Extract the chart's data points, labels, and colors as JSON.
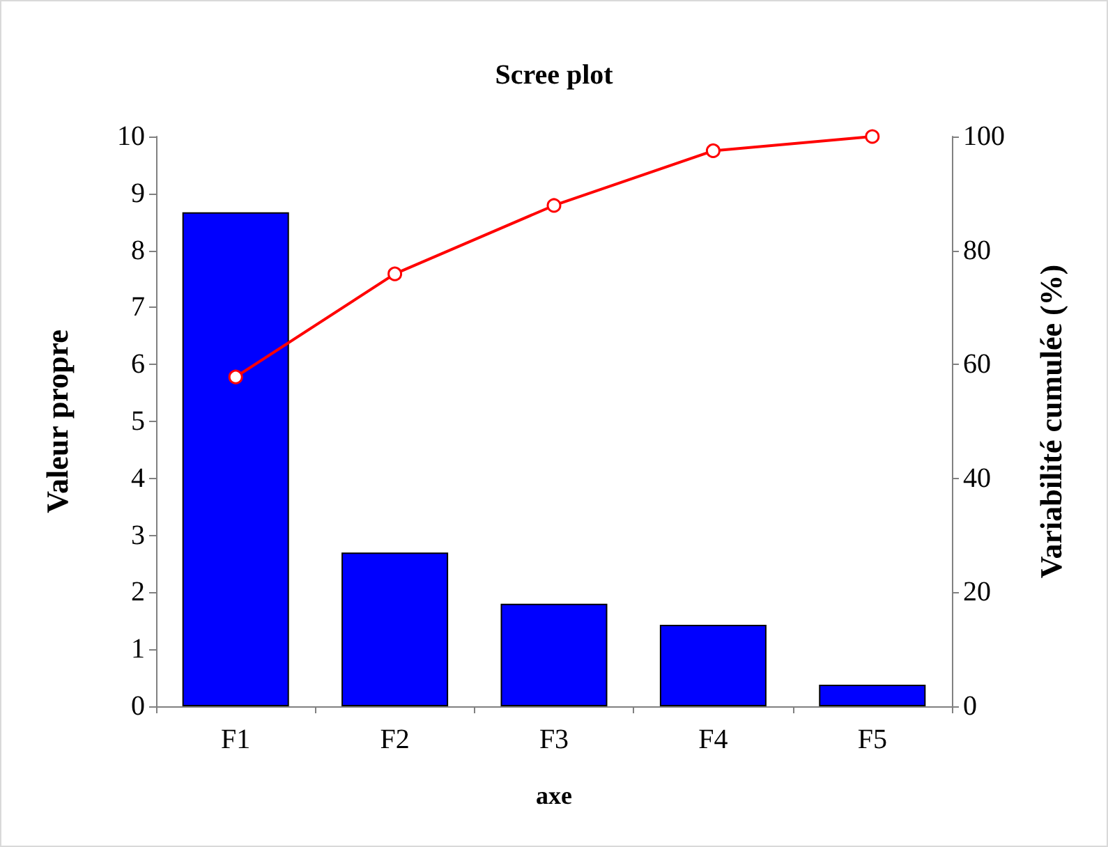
{
  "chart_data": {
    "type": "bar",
    "title": "Scree plot",
    "xlabel": "axe",
    "ylabel": "Valeur propre",
    "y2label": "Variabilité cumulée (%)",
    "categories": [
      "F1",
      "F2",
      "F3",
      "F4",
      "F5"
    ],
    "series": [
      {
        "color": "#0000ff",
        "values": [
          8.67,
          2.7,
          1.8,
          1.43,
          0.38
        ]
      },
      {
        "type": "line",
        "axis": "y2",
        "color": "#ff0000",
        "marker": "circle",
        "values": [
          57.8,
          75.9,
          87.9,
          97.5,
          100
        ]
      }
    ],
    "ylim": [
      0,
      10
    ],
    "yticks": [
      0,
      1,
      2,
      3,
      4,
      5,
      6,
      7,
      8,
      9,
      10
    ],
    "y2lim": [
      0,
      100
    ],
    "y2ticks": [
      0,
      20,
      40,
      60,
      80,
      100
    ],
    "grid": false
  }
}
